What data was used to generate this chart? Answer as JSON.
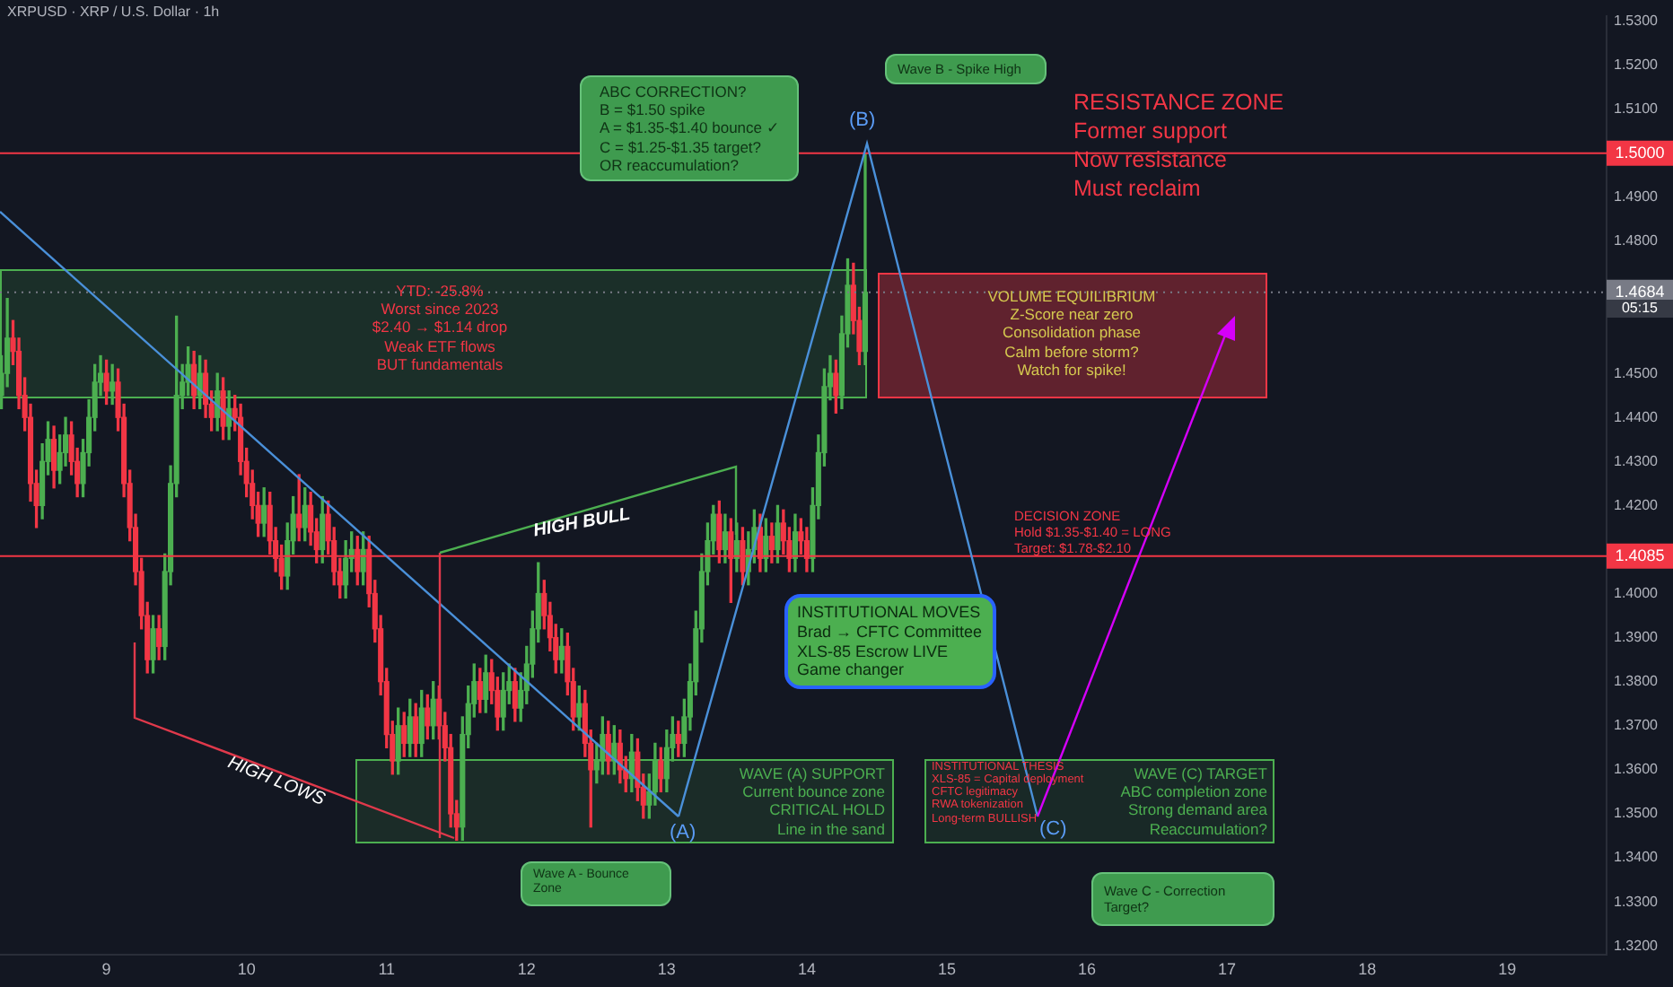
{
  "chart_data": {
    "type": "candlestick",
    "title": "XRPUSD · XRP / U.S. Dollar · 1h",
    "x": [
      8.25,
      8.292,
      8.333,
      8.375,
      8.417,
      8.458,
      8.5,
      8.542,
      8.583,
      8.625,
      8.667,
      8.708,
      8.75,
      8.792,
      8.833,
      8.875,
      8.917,
      8.958,
      9,
      9.042,
      9.083,
      9.125,
      9.167,
      9.208,
      9.25,
      9.292,
      9.333,
      9.375,
      9.417,
      9.458,
      9.5,
      9.542,
      9.583,
      9.625,
      9.667,
      9.708,
      9.75,
      9.792,
      9.833,
      9.875,
      9.917,
      9.958,
      10,
      10.042,
      10.083,
      10.125,
      10.167,
      10.208,
      10.25,
      10.292,
      10.333,
      10.375,
      10.417,
      10.458,
      10.5,
      10.542,
      10.583,
      10.625,
      10.667,
      10.708,
      10.75,
      10.792,
      10.833,
      10.875,
      10.917,
      10.958,
      11,
      11.042,
      11.083,
      11.125,
      11.167,
      11.208,
      11.25,
      11.292,
      11.333,
      11.375,
      11.417,
      11.458,
      11.5,
      11.542,
      11.583,
      11.625,
      11.667,
      11.708,
      11.75,
      11.792,
      11.833,
      11.875,
      11.917,
      11.958,
      12,
      12.042,
      12.083,
      12.125,
      12.167,
      12.208,
      12.25,
      12.292,
      12.333,
      12.375,
      12.417,
      12.458,
      12.5,
      12.542,
      12.583,
      12.625,
      12.667,
      12.708,
      12.75,
      12.792,
      12.833,
      12.875,
      12.917,
      12.958,
      13,
      13.042,
      13.083,
      13.125,
      13.167,
      13.208,
      13.25,
      13.292,
      13.333,
      13.375,
      13.417,
      13.458,
      13.5,
      13.542,
      13.583,
      13.625,
      13.667,
      13.708,
      13.75,
      13.792,
      13.833,
      13.875,
      13.917,
      13.958,
      14,
      14.042,
      14.083,
      14.125,
      14.167,
      14.208,
      14.25,
      14.292,
      14.333,
      14.375,
      14.417
    ],
    "ohlc": [
      [
        1.445,
        1.454,
        1.442,
        1.45
      ],
      [
        1.45,
        1.467,
        1.447,
        1.458
      ],
      [
        1.458,
        1.462,
        1.452,
        1.455
      ],
      [
        1.455,
        1.458,
        1.442,
        1.445
      ],
      [
        1.445,
        1.449,
        1.437,
        1.44
      ],
      [
        1.44,
        1.443,
        1.421,
        1.425
      ],
      [
        1.425,
        1.428,
        1.415,
        1.42
      ],
      [
        1.42,
        1.434,
        1.417,
        1.43
      ],
      [
        1.43,
        1.439,
        1.427,
        1.435
      ],
      [
        1.435,
        1.438,
        1.424,
        1.428
      ],
      [
        1.428,
        1.436,
        1.425,
        1.432
      ],
      [
        1.432,
        1.44,
        1.429,
        1.436
      ],
      [
        1.436,
        1.439,
        1.427,
        1.43
      ],
      [
        1.43,
        1.433,
        1.422,
        1.425
      ],
      [
        1.425,
        1.435,
        1.422,
        1.432
      ],
      [
        1.432,
        1.444,
        1.429,
        1.44
      ],
      [
        1.44,
        1.452,
        1.437,
        1.448
      ],
      [
        1.448,
        1.454,
        1.445,
        1.45
      ],
      [
        1.45,
        1.453,
        1.443,
        1.446
      ],
      [
        1.446,
        1.452,
        1.443,
        1.448
      ],
      [
        1.448,
        1.451,
        1.437,
        1.44
      ],
      [
        1.44,
        1.443,
        1.422,
        1.425
      ],
      [
        1.425,
        1.428,
        1.412,
        1.415
      ],
      [
        1.415,
        1.418,
        1.402,
        1.405
      ],
      [
        1.405,
        1.408,
        1.392,
        1.395
      ],
      [
        1.395,
        1.398,
        1.382,
        1.385
      ],
      [
        1.385,
        1.395,
        1.382,
        1.392
      ],
      [
        1.392,
        1.395,
        1.385,
        1.388
      ],
      [
        1.388,
        1.409,
        1.385,
        1.405
      ],
      [
        1.405,
        1.429,
        1.402,
        1.425
      ],
      [
        1.425,
        1.463,
        1.422,
        1.445
      ],
      [
        1.445,
        1.452,
        1.442,
        1.448
      ],
      [
        1.448,
        1.456,
        1.445,
        1.452
      ],
      [
        1.452,
        1.455,
        1.442,
        1.445
      ],
      [
        1.445,
        1.454,
        1.442,
        1.45
      ],
      [
        1.45,
        1.453,
        1.44,
        1.443
      ],
      [
        1.443,
        1.446,
        1.437,
        1.44
      ],
      [
        1.44,
        1.45,
        1.437,
        1.446
      ],
      [
        1.446,
        1.449,
        1.435,
        1.438
      ],
      [
        1.438,
        1.446,
        1.435,
        1.442
      ],
      [
        1.442,
        1.445,
        1.437,
        1.44
      ],
      [
        1.44,
        1.443,
        1.427,
        1.43
      ],
      [
        1.43,
        1.433,
        1.422,
        1.425
      ],
      [
        1.425,
        1.428,
        1.417,
        1.42
      ],
      [
        1.42,
        1.423,
        1.413,
        1.416
      ],
      [
        1.416,
        1.424,
        1.413,
        1.42
      ],
      [
        1.42,
        1.423,
        1.409,
        1.412
      ],
      [
        1.412,
        1.415,
        1.405,
        1.408
      ],
      [
        1.408,
        1.411,
        1.401,
        1.404
      ],
      [
        1.404,
        1.416,
        1.401,
        1.412
      ],
      [
        1.412,
        1.422,
        1.409,
        1.418
      ],
      [
        1.418,
        1.427,
        1.412,
        1.415
      ],
      [
        1.415,
        1.424,
        1.412,
        1.42
      ],
      [
        1.42,
        1.423,
        1.411,
        1.414
      ],
      [
        1.414,
        1.417,
        1.407,
        1.41
      ],
      [
        1.41,
        1.422,
        1.407,
        1.418
      ],
      [
        1.418,
        1.421,
        1.409,
        1.412
      ],
      [
        1.412,
        1.415,
        1.402,
        1.405
      ],
      [
        1.405,
        1.408,
        1.399,
        1.402
      ],
      [
        1.402,
        1.412,
        1.399,
        1.408
      ],
      [
        1.408,
        1.414,
        1.405,
        1.41
      ],
      [
        1.41,
        1.413,
        1.402,
        1.405
      ],
      [
        1.405,
        1.414,
        1.402,
        1.41
      ],
      [
        1.41,
        1.413,
        1.397,
        1.4
      ],
      [
        1.4,
        1.403,
        1.389,
        1.392
      ],
      [
        1.392,
        1.395,
        1.377,
        1.38
      ],
      [
        1.38,
        1.383,
        1.365,
        1.368
      ],
      [
        1.368,
        1.371,
        1.359,
        1.362
      ],
      [
        1.362,
        1.374,
        1.359,
        1.37
      ],
      [
        1.37,
        1.373,
        1.363,
        1.366
      ],
      [
        1.366,
        1.376,
        1.363,
        1.372
      ],
      [
        1.372,
        1.375,
        1.363,
        1.366
      ],
      [
        1.366,
        1.378,
        1.363,
        1.374
      ],
      [
        1.374,
        1.377,
        1.367,
        1.37
      ],
      [
        1.37,
        1.38,
        1.367,
        1.376
      ],
      [
        1.376,
        1.379,
        1.367,
        1.37
      ],
      [
        1.37,
        1.373,
        1.362,
        1.365
      ],
      [
        1.365,
        1.368,
        1.347,
        1.35
      ],
      [
        1.35,
        1.353,
        1.344,
        1.347
      ],
      [
        1.347,
        1.372,
        1.344,
        1.368
      ],
      [
        1.368,
        1.379,
        1.365,
        1.375
      ],
      [
        1.375,
        1.384,
        1.372,
        1.38
      ],
      [
        1.38,
        1.383,
        1.373,
        1.376
      ],
      [
        1.376,
        1.386,
        1.373,
        1.382
      ],
      [
        1.382,
        1.385,
        1.375,
        1.378
      ],
      [
        1.378,
        1.381,
        1.369,
        1.372
      ],
      [
        1.372,
        1.382,
        1.369,
        1.378
      ],
      [
        1.378,
        1.384,
        1.375,
        1.38
      ],
      [
        1.38,
        1.383,
        1.371,
        1.374
      ],
      [
        1.374,
        1.382,
        1.371,
        1.378
      ],
      [
        1.378,
        1.388,
        1.375,
        1.384
      ],
      [
        1.384,
        1.396,
        1.381,
        1.392
      ],
      [
        1.392,
        1.407,
        1.389,
        1.4
      ],
      [
        1.4,
        1.403,
        1.392,
        1.395
      ],
      [
        1.395,
        1.398,
        1.387,
        1.39
      ],
      [
        1.39,
        1.393,
        1.382,
        1.385
      ],
      [
        1.385,
        1.392,
        1.382,
        1.388
      ],
      [
        1.388,
        1.391,
        1.377,
        1.38
      ],
      [
        1.38,
        1.383,
        1.369,
        1.372
      ],
      [
        1.372,
        1.379,
        1.369,
        1.375
      ],
      [
        1.375,
        1.378,
        1.363,
        1.366
      ],
      [
        1.366,
        1.369,
        1.347,
        1.36
      ],
      [
        1.36,
        1.366,
        1.357,
        1.362
      ],
      [
        1.362,
        1.372,
        1.359,
        1.368
      ],
      [
        1.368,
        1.371,
        1.359,
        1.362
      ],
      [
        1.362,
        1.37,
        1.359,
        1.366
      ],
      [
        1.366,
        1.369,
        1.357,
        1.36
      ],
      [
        1.36,
        1.363,
        1.355,
        1.358
      ],
      [
        1.358,
        1.368,
        1.355,
        1.364
      ],
      [
        1.364,
        1.367,
        1.353,
        1.356
      ],
      [
        1.356,
        1.359,
        1.349,
        1.352
      ],
      [
        1.352,
        1.359,
        1.349,
        1.355
      ],
      [
        1.355,
        1.366,
        1.352,
        1.362
      ],
      [
        1.362,
        1.365,
        1.355,
        1.358
      ],
      [
        1.358,
        1.369,
        1.355,
        1.365
      ],
      [
        1.365,
        1.372,
        1.362,
        1.368
      ],
      [
        1.368,
        1.371,
        1.363,
        1.366
      ],
      [
        1.366,
        1.376,
        1.363,
        1.372
      ],
      [
        1.372,
        1.384,
        1.369,
        1.38
      ],
      [
        1.38,
        1.396,
        1.377,
        1.392
      ],
      [
        1.392,
        1.409,
        1.389,
        1.405
      ],
      [
        1.405,
        1.416,
        1.402,
        1.412
      ],
      [
        1.412,
        1.42,
        1.409,
        1.418
      ],
      [
        1.418,
        1.421,
        1.407,
        1.41
      ],
      [
        1.41,
        1.418,
        1.407,
        1.414
      ],
      [
        1.414,
        1.417,
        1.398,
        1.408
      ],
      [
        1.408,
        1.416,
        1.405,
        1.412
      ],
      [
        1.412,
        1.415,
        1.402,
        1.405
      ],
      [
        1.405,
        1.414,
        1.402,
        1.41
      ],
      [
        1.41,
        1.419,
        1.407,
        1.415
      ],
      [
        1.415,
        1.418,
        1.405,
        1.408
      ],
      [
        1.408,
        1.417,
        1.405,
        1.413
      ],
      [
        1.413,
        1.416,
        1.407,
        1.41
      ],
      [
        1.41,
        1.42,
        1.407,
        1.416
      ],
      [
        1.416,
        1.419,
        1.409,
        1.412
      ],
      [
        1.412,
        1.415,
        1.405,
        1.408
      ],
      [
        1.408,
        1.418,
        1.405,
        1.414
      ],
      [
        1.414,
        1.417,
        1.409,
        1.412
      ],
      [
        1.412,
        1.415,
        1.405,
        1.408
      ],
      [
        1.408,
        1.424,
        1.405,
        1.42
      ],
      [
        1.42,
        1.436,
        1.417,
        1.432
      ],
      [
        1.432,
        1.451,
        1.429,
        1.447
      ],
      [
        1.447,
        1.454,
        1.444,
        1.45
      ],
      [
        1.45,
        1.453,
        1.441,
        1.445
      ],
      [
        1.445,
        1.463,
        1.442,
        1.459
      ],
      [
        1.459,
        1.476,
        1.456,
        1.47
      ],
      [
        1.47,
        1.475,
        1.459,
        1.462
      ],
      [
        1.462,
        1.465,
        1.452,
        1.455
      ],
      [
        1.455,
        1.5,
        1.452,
        1.4684
      ]
    ],
    "colors": [
      "#4caf50",
      "#4caf50",
      "#f23645",
      "#f23645",
      "#f23645",
      "#f23645",
      "#f23645",
      "#4caf50",
      "#4caf50",
      "#f23645",
      "#4caf50",
      "#4caf50",
      "#f23645",
      "#f23645",
      "#4caf50",
      "#4caf50",
      "#4caf50",
      "#4caf50",
      "#f23645",
      "#4caf50",
      "#f23645",
      "#f23645",
      "#f23645",
      "#f23645",
      "#f23645",
      "#f23645",
      "#4caf50",
      "#f23645",
      "#4caf50",
      "#4caf50",
      "#4caf50",
      "#4caf50",
      "#4caf50",
      "#f23645",
      "#4caf50",
      "#f23645",
      "#f23645",
      "#4caf50",
      "#f23645",
      "#4caf50",
      "#f23645",
      "#f23645",
      "#f23645",
      "#f23645",
      "#f23645",
      "#4caf50",
      "#f23645",
      "#f23645",
      "#f23645",
      "#4caf50",
      "#4caf50",
      "#f23645",
      "#4caf50",
      "#f23645",
      "#f23645",
      "#4caf50",
      "#f23645",
      "#f23645",
      "#f23645",
      "#4caf50",
      "#4caf50",
      "#f23645",
      "#4caf50",
      "#f23645",
      "#f23645",
      "#f23645",
      "#f23645",
      "#f23645",
      "#4caf50",
      "#f23645",
      "#4caf50",
      "#f23645",
      "#4caf50",
      "#f23645",
      "#4caf50",
      "#f23645",
      "#f23645",
      "#f23645",
      "#f23645",
      "#4caf50",
      "#4caf50",
      "#4caf50",
      "#f23645",
      "#4caf50",
      "#f23645",
      "#f23645",
      "#4caf50",
      "#4caf50",
      "#f23645",
      "#4caf50",
      "#4caf50",
      "#4caf50",
      "#4caf50",
      "#f23645",
      "#f23645",
      "#f23645",
      "#4caf50",
      "#f23645",
      "#f23645",
      "#4caf50",
      "#f23645",
      "#f23645",
      "#4caf50",
      "#4caf50",
      "#f23645",
      "#4caf50",
      "#f23645",
      "#f23645",
      "#4caf50",
      "#f23645",
      "#f23645",
      "#4caf50",
      "#4caf50",
      "#f23645",
      "#4caf50",
      "#4caf50",
      "#f23645",
      "#4caf50",
      "#4caf50",
      "#4caf50",
      "#4caf50",
      "#4caf50",
      "#4caf50",
      "#f23645",
      "#4caf50",
      "#f23645",
      "#4caf50",
      "#f23645",
      "#4caf50",
      "#4caf50",
      "#f23645",
      "#4caf50",
      "#f23645",
      "#4caf50",
      "#f23645",
      "#f23645",
      "#4caf50",
      "#f23645",
      "#f23645",
      "#4caf50",
      "#4caf50",
      "#4caf50",
      "#4caf50",
      "#f23645",
      "#4caf50",
      "#4caf50",
      "#f23645",
      "#f23645",
      "#4caf50"
    ],
    "xlim": [
      8.24,
      19.71
    ],
    "xticks": [
      9,
      10,
      11,
      12,
      13,
      14,
      15,
      16,
      17,
      18,
      19
    ],
    "ylim": [
      1.318,
      1.5312
    ],
    "yticks": [
      {
        "value": 1.32,
        "label": "1.3200"
      },
      {
        "value": 1.33,
        "label": "1.3300"
      },
      {
        "value": 1.34,
        "label": "1.3400"
      },
      {
        "value": 1.35,
        "label": "1.3500"
      },
      {
        "value": 1.36,
        "label": "1.3600"
      },
      {
        "value": 1.37,
        "label": "1.3700"
      },
      {
        "value": 1.38,
        "label": "1.3800"
      },
      {
        "value": 1.39,
        "label": "1.3900"
      },
      {
        "value": 1.4,
        "label": "1.4000"
      },
      {
        "value": 1.42,
        "label": "1.4200"
      },
      {
        "value": 1.43,
        "label": "1.4300"
      },
      {
        "value": 1.44,
        "label": "1.4400"
      },
      {
        "value": 1.45,
        "label": "1.4500"
      },
      {
        "value": 1.48,
        "label": "1.4800"
      },
      {
        "value": 1.49,
        "label": "1.4900"
      },
      {
        "value": 1.51,
        "label": "1.5100"
      },
      {
        "value": 1.52,
        "label": "1.5200"
      },
      {
        "value": 1.53,
        "label": "1.5300"
      }
    ],
    "ref_lines": [
      {
        "axis": "y",
        "value": 1.5,
        "label": "1.5000",
        "color": "#f23645",
        "line_style": "solid"
      },
      {
        "axis": "y",
        "value": 1.4684,
        "label": "1.4684",
        "color": "#787b86",
        "line_style": "dotted"
      },
      {
        "axis": "y",
        "value": 1.4085,
        "label": "1.4085",
        "color": "#f23645",
        "line_style": "solid"
      }
    ],
    "annotations": [
      "05:15",
      "ABC CORRECTION?\nB = $1.50 spike\nA = $1.35-$1.40 bounce ✓\nC = $1.25-$1.35 target?\nOR reaccumulation?",
      "Wave B - Spike High",
      "(B)",
      "RESISTANCE ZONE\nFormer support\nNow resistance\nMust reclaim",
      "YTD: -25.8%\nWorst since 2023\n$2.40 → $1.14 drop\nWeak ETF flows\nBUT fundamentals",
      "VOLUME EQUILIBRIUM\nZ-Score near zero\nConsolidation phase\nCalm before storm?\nWatch for spike!",
      "HIGH BULL",
      "DECISION ZONE\nHold $1.35-$1.40 = LONG\nTarget: $1.78-$2.10",
      "INSTITUTIONAL MOVES\nBrad → CFTC Committee\nXLS-85 Escrow LIVE\nGame changer",
      "HIGH LOWS",
      "WAVE (A) SUPPORT\nCurrent bounce zone\nCRITICAL HOLD\nLine in the sand",
      "(A)",
      "Wave A - Bounce Zone",
      "INSTITUTIONAL THESIS\nXLS-85 = Capital deployment\nCFTC legitimacy\nRWA tokenization\nLong-term BULLISH",
      "(C)",
      "WAVE (C) TARGET\nABC completion zone\nStrong demand area\nReaccumulation?",
      "Wave C - Correction Target?"
    ],
    "grid": false,
    "legend": false
  }
}
